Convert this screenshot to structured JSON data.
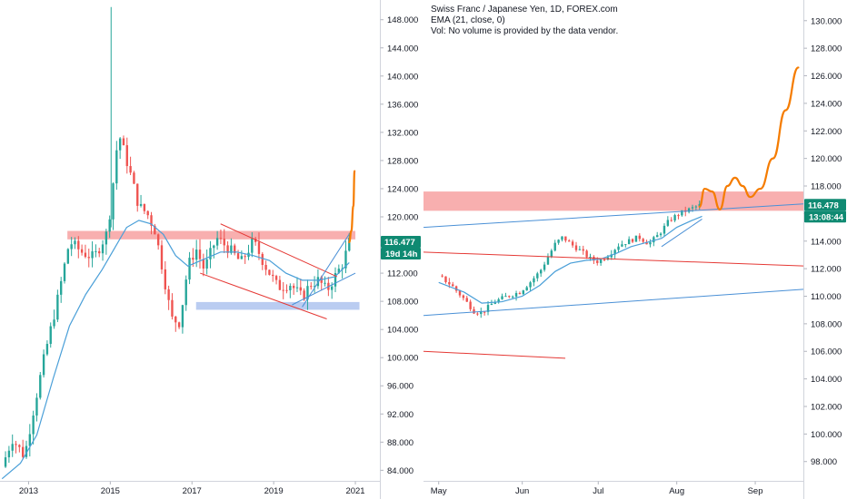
{
  "right_legend": {
    "title": "Swiss Franc / Japanese Yen, 1D, FOREX.com",
    "ema": "EMA (21, close, 0)",
    "volume_note": "Vol: No volume is provided by the data vendor."
  },
  "colors": {
    "up": "#26a69a",
    "down": "#ef5350",
    "ema": "#4a9fd8",
    "projection": "#f57c00",
    "resistance_zone": "#f7a1a1",
    "support_zone": "#b3c7f0",
    "trend_blue": "#4a90d6",
    "trend_red": "#e53935",
    "price_tag": "#0f8a72"
  },
  "chart_data": [
    {
      "type": "candlestick",
      "panel": "left",
      "timeframe": "weekly (approx.)",
      "x_ticks": [
        "2013",
        "2015",
        "2017",
        "2019",
        "2021"
      ],
      "y_ticks": [
        "84.000",
        "88.000",
        "92.000",
        "96.000",
        "100.000",
        "104.000",
        "108.000",
        "112.000",
        "116.000",
        "120.000",
        "124.000",
        "128.000",
        "132.000",
        "136.000",
        "140.000",
        "144.000",
        "148.000"
      ],
      "ylim": [
        82.5,
        150.8
      ],
      "xlim": [
        2012.3,
        2021.6
      ],
      "price_label": "116.477",
      "countdown_label": "19d 14h",
      "approx_close_path": [
        [
          2012.35,
          84.5
        ],
        [
          2012.6,
          88.5
        ],
        [
          2012.9,
          86.0
        ],
        [
          2013.1,
          92.0
        ],
        [
          2013.4,
          100.5
        ],
        [
          2013.7,
          108.0
        ],
        [
          2014.0,
          116.5
        ],
        [
          2014.3,
          115.0
        ],
        [
          2014.6,
          114.2
        ],
        [
          2014.9,
          117.5
        ],
        [
          2015.0,
          121.0
        ],
        [
          2015.2,
          132.0
        ],
        [
          2015.45,
          127.0
        ],
        [
          2015.7,
          121.5
        ],
        [
          2015.9,
          120.5
        ],
        [
          2016.1,
          118.0
        ],
        [
          2016.3,
          112.0
        ],
        [
          2016.5,
          105.5
        ],
        [
          2016.7,
          105.0
        ],
        [
          2016.9,
          113.0
        ],
        [
          2017.1,
          115.5
        ],
        [
          2017.3,
          112.5
        ],
        [
          2017.6,
          117.0
        ],
        [
          2017.9,
          115.5
        ],
        [
          2018.2,
          113.5
        ],
        [
          2018.5,
          116.5
        ],
        [
          2018.8,
          113.0
        ],
        [
          2019.1,
          110.0
        ],
        [
          2019.4,
          110.5
        ],
        [
          2019.7,
          108.5
        ],
        [
          2019.9,
          110.5
        ],
        [
          2020.1,
          111.0
        ],
        [
          2020.3,
          109.5
        ],
        [
          2020.5,
          111.5
        ],
        [
          2020.7,
          113.5
        ],
        [
          2020.85,
          116.4
        ]
      ],
      "ema_path": [
        [
          2012.35,
          82.8
        ],
        [
          2012.8,
          85.0
        ],
        [
          2013.2,
          89.0
        ],
        [
          2013.6,
          97.0
        ],
        [
          2014.0,
          104.5
        ],
        [
          2014.4,
          109.0
        ],
        [
          2014.8,
          112.5
        ],
        [
          2015.1,
          115.5
        ],
        [
          2015.4,
          118.5
        ],
        [
          2015.7,
          119.5
        ],
        [
          2016.0,
          119.0
        ],
        [
          2016.3,
          117.5
        ],
        [
          2016.6,
          114.5
        ],
        [
          2016.9,
          113.0
        ],
        [
          2017.3,
          114.0
        ],
        [
          2017.7,
          115.0
        ],
        [
          2018.1,
          115.0
        ],
        [
          2018.5,
          114.5
        ],
        [
          2018.9,
          113.8
        ],
        [
          2019.3,
          112.0
        ],
        [
          2019.7,
          111.0
        ],
        [
          2020.1,
          111.0
        ],
        [
          2020.5,
          111.5
        ],
        [
          2020.85,
          113.5
        ]
      ],
      "projection_path": [
        [
          2020.85,
          116.4
        ],
        [
          2020.9,
          118.0
        ],
        [
          2020.95,
          121.5
        ],
        [
          2020.98,
          126.5
        ]
      ],
      "resistance_zone": {
        "x_from": 2013.95,
        "x_to": 2021.0,
        "y_from": 116.8,
        "y_to": 118.0
      },
      "support_zone": {
        "x_from": 2017.1,
        "x_to": 2021.1,
        "y_from": 106.8,
        "y_to": 107.9
      },
      "trend_lines": [
        {
          "color": "red",
          "from": [
            2017.7,
            119.0
          ],
          "to": [
            2020.55,
            111.5
          ]
        },
        {
          "color": "red",
          "from": [
            2017.2,
            112.0
          ],
          "to": [
            2020.3,
            105.5
          ]
        },
        {
          "color": "blue",
          "from": [
            2019.7,
            107.2
          ],
          "to": [
            2020.9,
            118.0
          ]
        },
        {
          "color": "blue",
          "from": [
            2019.45,
            107.5
          ],
          "to": [
            2021.0,
            112.0
          ]
        }
      ]
    },
    {
      "type": "candlestick",
      "panel": "right",
      "timeframe": "1D",
      "x_ticks": [
        "May",
        "Jun",
        "Jul",
        "Aug",
        "Sep"
      ],
      "y_ticks": [
        "98.000",
        "100.000",
        "102.000",
        "104.000",
        "106.000",
        "108.000",
        "110.000",
        "112.000",
        "114.000",
        "116.000",
        "118.000",
        "120.000",
        "122.000",
        "124.000",
        "126.000",
        "128.000",
        "130.000"
      ],
      "ylim": [
        96.6,
        131.5
      ],
      "xlim": [
        -6,
        144
      ],
      "price_label": "116.478",
      "countdown_label": "13:08:44",
      "approx_close_path": [
        [
          0,
          111.5
        ],
        [
          5,
          110.8
        ],
        [
          10,
          109.8
        ],
        [
          14,
          108.9
        ],
        [
          17,
          108.8
        ],
        [
          22,
          109.6
        ],
        [
          27,
          110.0
        ],
        [
          32,
          110.3
        ],
        [
          36,
          111.0
        ],
        [
          40,
          111.8
        ],
        [
          43,
          112.8
        ],
        [
          46,
          113.8
        ],
        [
          49,
          114.3
        ],
        [
          52,
          113.8
        ],
        [
          56,
          113.3
        ],
        [
          60,
          112.7
        ],
        [
          63,
          112.5
        ],
        [
          67,
          113.0
        ],
        [
          71,
          113.7
        ],
        [
          75,
          114.0
        ],
        [
          79,
          114.3
        ],
        [
          83,
          113.8
        ],
        [
          87,
          114.5
        ],
        [
          91,
          115.5
        ],
        [
          95,
          116.0
        ],
        [
          99,
          116.3
        ],
        [
          103,
          116.6
        ]
      ],
      "ema_path": [
        [
          0,
          111.0
        ],
        [
          10,
          110.3
        ],
        [
          17,
          109.5
        ],
        [
          25,
          109.6
        ],
        [
          33,
          110.0
        ],
        [
          40,
          110.8
        ],
        [
          46,
          111.8
        ],
        [
          52,
          112.4
        ],
        [
          58,
          112.6
        ],
        [
          64,
          112.7
        ],
        [
          70,
          113.1
        ],
        [
          76,
          113.6
        ],
        [
          82,
          113.9
        ],
        [
          88,
          114.2
        ],
        [
          94,
          115.0
        ],
        [
          100,
          115.5
        ],
        [
          104,
          115.8
        ]
      ],
      "projection_path": [
        [
          103,
          116.5
        ],
        [
          105,
          117.8
        ],
        [
          108,
          117.6
        ],
        [
          111,
          116.3
        ],
        [
          114,
          118.0
        ],
        [
          117,
          118.6
        ],
        [
          120,
          118.0
        ],
        [
          123,
          117.2
        ],
        [
          127,
          117.8
        ],
        [
          132,
          120.0
        ],
        [
          137,
          123.5
        ],
        [
          142,
          126.6
        ]
      ],
      "resistance_zone": {
        "x_from": -6,
        "x_to": 144,
        "y_from": 116.2,
        "y_to": 117.6
      },
      "trend_lines": [
        {
          "color": "blue",
          "from": [
            -6,
            115.0
          ],
          "to": [
            144,
            116.7
          ]
        },
        {
          "color": "blue",
          "from": [
            -6,
            108.6
          ],
          "to": [
            144,
            110.5
          ]
        },
        {
          "color": "blue",
          "from": [
            88,
            113.6
          ],
          "to": [
            104,
            115.6
          ]
        },
        {
          "color": "red",
          "from": [
            -6,
            113.2
          ],
          "to": [
            144,
            112.2
          ]
        },
        {
          "color": "red",
          "from": [
            -6,
            106.0
          ],
          "to": [
            50,
            105.5
          ]
        }
      ]
    }
  ]
}
